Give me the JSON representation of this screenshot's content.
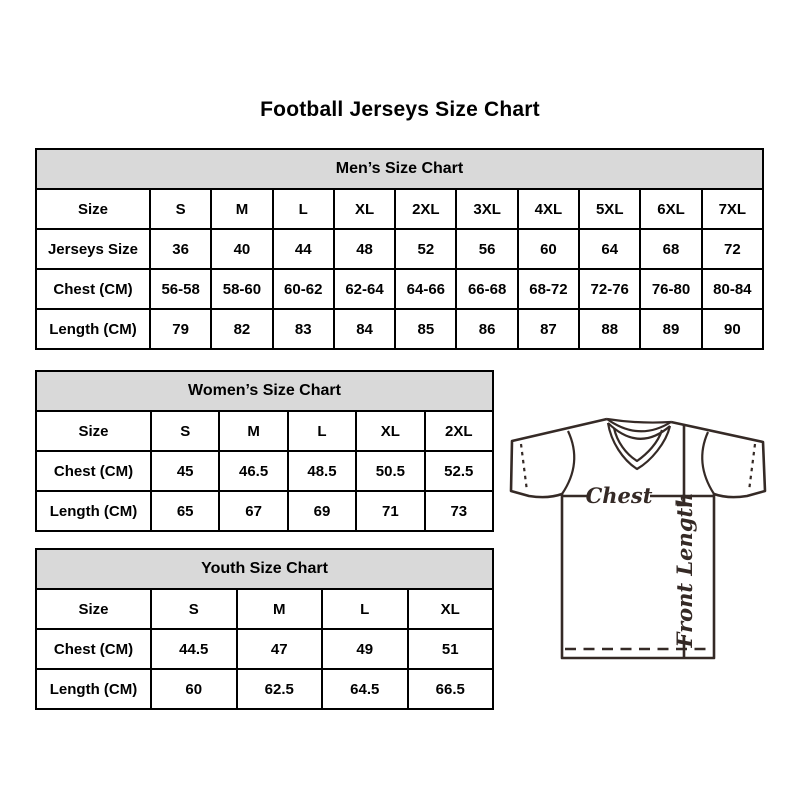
{
  "page_title": "Football Jerseys Size Chart",
  "chart_data": [
    {
      "type": "table",
      "id": "mens",
      "title": "Men’s Size Chart",
      "rows": [
        {
          "label": "Size",
          "values": [
            "S",
            "M",
            "L",
            "XL",
            "2XL",
            "3XL",
            "4XL",
            "5XL",
            "6XL",
            "7XL"
          ]
        },
        {
          "label": "Jerseys Size",
          "values": [
            "36",
            "40",
            "44",
            "48",
            "52",
            "56",
            "60",
            "64",
            "68",
            "72"
          ]
        },
        {
          "label": "Chest (CM)",
          "values": [
            "56-58",
            "58-60",
            "60-62",
            "62-64",
            "64-66",
            "66-68",
            "68-72",
            "72-76",
            "76-80",
            "80-84"
          ]
        },
        {
          "label": "Length (CM)",
          "values": [
            "79",
            "82",
            "83",
            "84",
            "85",
            "86",
            "87",
            "88",
            "89",
            "90"
          ]
        }
      ]
    },
    {
      "type": "table",
      "id": "womens",
      "title": "Women’s Size Chart",
      "rows": [
        {
          "label": "Size",
          "values": [
            "S",
            "M",
            "L",
            "XL",
            "2XL"
          ]
        },
        {
          "label": "Chest (CM)",
          "values": [
            "45",
            "46.5",
            "48.5",
            "50.5",
            "52.5"
          ]
        },
        {
          "label": "Length (CM)",
          "values": [
            "65",
            "67",
            "69",
            "71",
            "73"
          ]
        }
      ]
    },
    {
      "type": "table",
      "id": "youth",
      "title": "Youth Size Chart",
      "rows": [
        {
          "label": "Size",
          "values": [
            "S",
            "M",
            "L",
            "XL"
          ]
        },
        {
          "label": "Chest (CM)",
          "values": [
            "44.5",
            "47",
            "49",
            "51"
          ]
        },
        {
          "label": "Length (CM)",
          "values": [
            "60",
            "62.5",
            "64.5",
            "66.5"
          ]
        }
      ]
    }
  ],
  "diagram": {
    "chest_label": "Chest",
    "front_length_label": "Front Length"
  },
  "colors": {
    "table_header_bg": "#d9d9d9",
    "table_border": "#000000",
    "jersey_line": "#352a26",
    "text": "#000000",
    "background": "#ffffff"
  }
}
